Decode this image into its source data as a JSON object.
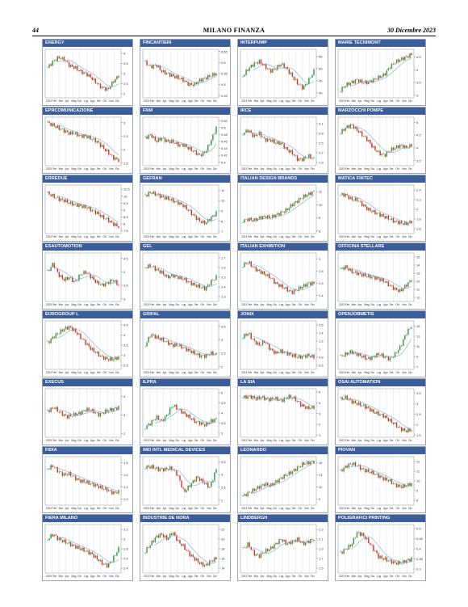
{
  "page": {
    "number": "44",
    "title": "MILANO FINANZA",
    "date": "30 Dicembre 2023"
  },
  "colors": {
    "title_bar": "#3b5d9c",
    "up_candle": "#2e9a3c",
    "down_candle": "#d8322a",
    "moving_average": "#7fa6d3",
    "grid": "#d4d8de"
  },
  "months_std": [
    "2023",
    "Feb",
    "Mar",
    "Apr",
    "Mag",
    "Giu",
    "Lug",
    "Ago",
    "Set",
    "Ott",
    "Nov",
    "Dic"
  ],
  "chart_data": [
    {
      "type": "candlestick",
      "title": "ENERGY",
      "yticks": [
        "2",
        "2.5",
        "3",
        "3.5",
        "4"
      ],
      "ylim": [
        1.8,
        4.2
      ],
      "prices": [
        3.3,
        3.6,
        3.8,
        3.7,
        3.4,
        3.3,
        3.1,
        3.0,
        2.8,
        2.5,
        2.3,
        2.2,
        2.6,
        2.9
      ]
    },
    {
      "type": "candlestick",
      "title": "FINCANTIERI",
      "yticks": [
        "0.45",
        "0.5",
        "0.55",
        "0.6",
        "0.65"
      ],
      "ylim": [
        0.44,
        0.66
      ],
      "prices": [
        0.6,
        0.58,
        0.59,
        0.56,
        0.55,
        0.54,
        0.53,
        0.52,
        0.5,
        0.5,
        0.52,
        0.53,
        0.54,
        0.55
      ]
    },
    {
      "type": "candlestick",
      "title": "INTERPUMP",
      "yticks": [
        "40",
        "45",
        "50",
        "55"
      ],
      "ylim": [
        38,
        58
      ],
      "prices": [
        47,
        50,
        52,
        53,
        51,
        49,
        50,
        52,
        50,
        47,
        44,
        42,
        45,
        49
      ]
    },
    {
      "type": "candlestick",
      "title": "MAIRE TECNIMONT",
      "yticks": [
        "3",
        "3.5",
        "4",
        "4.5"
      ],
      "ylim": [
        2.9,
        4.8
      ],
      "prices": [
        3.2,
        3.4,
        3.5,
        3.6,
        3.5,
        3.5,
        3.6,
        3.7,
        3.8,
        4.1,
        4.3,
        4.4,
        4.5,
        4.6
      ]
    },
    {
      "type": "candlestick",
      "title": "EPRCOMUNICAZIONE",
      "yticks": [
        "1.5",
        "2",
        "2.5",
        "3"
      ],
      "ylim": [
        1.4,
        3.2
      ],
      "prices": [
        3.0,
        2.9,
        2.8,
        2.7,
        2.6,
        2.6,
        2.5,
        2.5,
        2.4,
        2.3,
        2.1,
        1.9,
        1.7,
        1.6
      ]
    },
    {
      "type": "candlestick",
      "title": "FNM",
      "yticks": [
        "0.4",
        "0.42",
        "0.44",
        "0.46",
        "0.48",
        "0.5",
        "0.52"
      ],
      "ylim": [
        0.39,
        0.53
      ],
      "prices": [
        0.47,
        0.48,
        0.46,
        0.47,
        0.46,
        0.46,
        0.45,
        0.45,
        0.44,
        0.43,
        0.42,
        0.43,
        0.46,
        0.5
      ]
    },
    {
      "type": "candlestick",
      "title": "IRCE",
      "yticks": [
        "1.9",
        "2.2",
        "2.5",
        "2.8",
        "3.1"
      ],
      "ylim": [
        1.8,
        3.3
      ],
      "prices": [
        2.8,
        2.9,
        2.7,
        2.8,
        2.6,
        2.6,
        2.5,
        2.5,
        2.3,
        2.2,
        2.0,
        2.0,
        2.1,
        2.0
      ]
    },
    {
      "type": "candlestick",
      "title": "MARZOCCHI POMPE",
      "yticks": [
        "3.5",
        "4",
        "4.5",
        "5"
      ],
      "ylim": [
        3.3,
        5.2
      ],
      "prices": [
        4.6,
        4.8,
        4.9,
        4.7,
        4.5,
        4.3,
        4.0,
        3.8,
        3.7,
        3.9,
        4.0,
        4.1,
        4.0,
        4.1
      ]
    },
    {
      "type": "candlestick",
      "title": "ERREDUE",
      "yticks": [
        "7.5",
        "8",
        "8.5",
        "9",
        "9.5",
        "10",
        "10.5"
      ],
      "ylim": [
        7.3,
        10.8
      ],
      "prices": [
        10.2,
        10.0,
        9.8,
        9.7,
        9.5,
        9.4,
        9.3,
        9.2,
        9.0,
        8.8,
        8.5,
        8.3,
        8.0,
        7.8
      ]
    },
    {
      "type": "candlestick",
      "title": "GEFRAN",
      "yticks": [
        "7",
        "8",
        "9",
        "10",
        "11"
      ],
      "ylim": [
        6.8,
        11.5
      ],
      "prices": [
        10.5,
        10.8,
        10.6,
        10.4,
        10.2,
        10.0,
        9.8,
        9.5,
        9.0,
        8.5,
        8.0,
        7.8,
        8.3,
        8.8
      ]
    },
    {
      "type": "candlestick",
      "title": "ITALIAN DESIGN BRANDS",
      "yticks": [
        "8",
        "9",
        "10",
        "11"
      ],
      "ylim": [
        7.8,
        11.5
      ],
      "prices": [
        8.8,
        8.9,
        8.8,
        9.0,
        9.1,
        9.0,
        9.2,
        9.4,
        9.6,
        10.0,
        10.3,
        10.6,
        10.8,
        11.0
      ]
    },
    {
      "type": "candlestick",
      "title": "MATICA FINTEC",
      "yticks": [
        "1.6",
        "1.8",
        "2",
        "2.2",
        "2.4"
      ],
      "ylim": [
        1.5,
        2.5
      ],
      "prices": [
        2.3,
        2.3,
        2.2,
        2.2,
        2.1,
        2.0,
        1.95,
        1.9,
        1.85,
        1.8,
        1.75,
        1.72,
        1.7,
        1.75
      ]
    },
    {
      "type": "candlestick",
      "title": "ESAUTOMOTION",
      "yticks": [
        "3",
        "3.5",
        "4",
        "4.5"
      ],
      "ylim": [
        2.9,
        4.7
      ],
      "prices": [
        4.0,
        4.3,
        3.9,
        3.7,
        3.8,
        3.6,
        3.9,
        4.0,
        3.8,
        3.6,
        3.5,
        3.6,
        3.7,
        3.5
      ]
    },
    {
      "type": "candlestick",
      "title": "GEL",
      "yticks": [
        "1.3",
        "1.4",
        "1.5",
        "1.6",
        "1.7"
      ],
      "ylim": [
        1.25,
        1.75
      ],
      "prices": [
        1.6,
        1.62,
        1.58,
        1.55,
        1.5,
        1.52,
        1.5,
        1.48,
        1.45,
        1.42,
        1.4,
        1.38,
        1.45,
        1.5
      ]
    },
    {
      "type": "candlestick",
      "title": "ITALIAN EXHIBITION",
      "yticks": [
        "2.4",
        "2.6",
        "2.8",
        "3"
      ],
      "ylim": [
        2.3,
        3.1
      ],
      "prices": [
        2.9,
        2.95,
        2.85,
        2.8,
        2.75,
        2.7,
        2.6,
        2.55,
        2.5,
        2.45,
        2.5,
        2.55,
        2.6,
        2.6
      ]
    },
    {
      "type": "candlestick",
      "title": "OFFICINA STELLARE",
      "yticks": [
        "10",
        "11",
        "12",
        "13",
        "14",
        "15"
      ],
      "ylim": [
        9.5,
        15.5
      ],
      "prices": [
        13.5,
        13.8,
        13.2,
        13.0,
        12.8,
        12.6,
        12.5,
        12.3,
        12.0,
        11.5,
        11.0,
        10.8,
        11.5,
        12.2
      ]
    },
    {
      "type": "candlestick",
      "title": "EUROGROUP L",
      "yticks": [
        "2.5",
        "3",
        "3.5",
        "4",
        "4.5"
      ],
      "ylim": [
        2.3,
        4.7
      ],
      "prices": [
        3.6,
        3.9,
        4.1,
        4.3,
        4.4,
        4.2,
        3.9,
        3.6,
        3.3,
        3.1,
        2.9,
        2.8,
        2.8,
        2.9
      ]
    },
    {
      "type": "candlestick",
      "title": "GRIFAL",
      "yticks": [
        "2",
        "2.5",
        "3",
        "3.5"
      ],
      "ylim": [
        1.9,
        3.7
      ],
      "prices": [
        2.8,
        3.2,
        3.1,
        3.0,
        2.9,
        2.8,
        2.8,
        2.7,
        2.6,
        2.5,
        2.4,
        2.4,
        2.5,
        2.45
      ]
    },
    {
      "type": "candlestick",
      "title": "JONIX",
      "yticks": [
        "0.6",
        "0.8",
        "1",
        "1.2",
        "1.4",
        "1.6"
      ],
      "ylim": [
        0.5,
        1.7
      ],
      "prices": [
        1.3,
        1.4,
        1.2,
        1.1,
        1.2,
        1.0,
        0.9,
        0.95,
        0.9,
        0.85,
        0.8,
        0.82,
        0.85,
        0.8
      ]
    },
    {
      "type": "candlestick",
      "title": "OPENJOBMETIS",
      "yticks": [
        "7",
        "9",
        "11",
        "13",
        "15"
      ],
      "ylim": [
        6.5,
        16
      ],
      "prices": [
        9.0,
        9.5,
        10.0,
        9.5,
        9.0,
        8.5,
        9.0,
        9.5,
        9.0,
        8.5,
        9.5,
        11.0,
        13.5,
        15.0
      ]
    },
    {
      "type": "candlestick",
      "title": "EXECUS",
      "yticks": [
        "2",
        "3",
        "4"
      ],
      "ylim": [
        1.8,
        4.4
      ],
      "prices": [
        3.2,
        3.4,
        3.1,
        2.9,
        3.0,
        3.1,
        3.3,
        3.2,
        3.0,
        3.2,
        3.3,
        3.4
      ]
    },
    {
      "type": "candlestick",
      "title": "ILPRA",
      "yticks": [
        "3",
        "3.5",
        "4",
        "4.5",
        "5"
      ],
      "ylim": [
        2.8,
        5.2
      ],
      "prices": [
        3.3,
        3.5,
        3.8,
        3.6,
        3.9,
        4.4,
        4.2,
        4.0,
        3.8,
        3.6,
        3.5,
        3.4,
        3.6,
        3.7
      ]
    },
    {
      "type": "candlestick",
      "title": "LA SIA",
      "yticks": [
        "1",
        "2",
        "3",
        "4",
        "5"
      ],
      "ylim": [
        0.8,
        5.3
      ],
      "prices": [
        4.5,
        4.6,
        4.4,
        4.5,
        4.3,
        4.4,
        4.2,
        4.6,
        4.4,
        3.8,
        3.5,
        3.6
      ]
    },
    {
      "type": "candlestick",
      "title": "OSAI AUTOMATION",
      "yticks": [
        "1.5",
        "2",
        "2.5",
        "3",
        "3.5"
      ],
      "ylim": [
        1.4,
        3.7
      ],
      "prices": [
        3.2,
        3.3,
        3.1,
        3.0,
        2.9,
        2.8,
        2.6,
        2.5,
        2.4,
        2.2,
        2.0,
        1.8,
        1.7,
        1.75
      ]
    },
    {
      "type": "candlestick",
      "title": "FIDIA",
      "yticks": [
        "1.2",
        "1.4",
        "1.6",
        "1.8"
      ],
      "ylim": [
        1.1,
        1.9
      ],
      "prices": [
        1.7,
        1.75,
        1.65,
        1.6,
        1.62,
        1.55,
        1.5,
        1.48,
        1.45,
        1.42,
        1.38,
        1.35,
        1.3,
        1.32
      ]
    },
    {
      "type": "candlestick",
      "title": "IMD INTL MEDICAL DEVICES",
      "yticks": [
        "2",
        "2.5",
        "3",
        "3.5"
      ],
      "ylim": [
        1.8,
        3.7
      ],
      "prices": [
        3.3,
        3.3,
        3.2,
        3.2,
        3.25,
        3.0,
        2.3,
        2.6,
        2.9,
        2.7,
        2.5,
        3.2
      ]
    },
    {
      "type": "candlestick",
      "title": "LEONARDO",
      "yticks": [
        "9",
        "11",
        "13",
        "15"
      ],
      "ylim": [
        8,
        16
      ],
      "prices": [
        9.5,
        10.0,
        10.5,
        11.0,
        11.5,
        11.2,
        11.8,
        12.5,
        13.0,
        13.5,
        14.2,
        14.8,
        15.0,
        15.2
      ]
    },
    {
      "type": "candlestick",
      "title": "PIOVAN",
      "yticks": [
        "8",
        "9",
        "10",
        "11",
        "12"
      ],
      "ylim": [
        7.5,
        12.5
      ],
      "prices": [
        11.0,
        11.5,
        11.8,
        11.6,
        11.2,
        11.0,
        10.8,
        10.5,
        10.2,
        10.0,
        9.6,
        9.4,
        9.5,
        9.7
      ]
    },
    {
      "type": "candlestick",
      "title": "FIERA MILANO",
      "yticks": [
        "2.4",
        "2.6",
        "2.8",
        "3",
        "3.2"
      ],
      "ylim": [
        2.3,
        3.3
      ],
      "prices": [
        3.0,
        3.1,
        3.0,
        2.95,
        2.9,
        2.85,
        2.8,
        2.75,
        2.7,
        2.6,
        2.5,
        2.45,
        2.6,
        2.8
      ]
    },
    {
      "type": "candlestick",
      "title": "INDUSTRIE DE NORA",
      "yticks": [
        "14",
        "16",
        "18",
        "20",
        "22"
      ],
      "ylim": [
        13,
        23
      ],
      "prices": [
        17.5,
        19.0,
        20.5,
        21.0,
        20.0,
        21.5,
        19.5,
        18.5,
        17.0,
        16.0,
        15.0,
        14.5,
        15.5,
        16.0
      ]
    },
    {
      "type": "candlestick",
      "title": "LINDBERGH",
      "yticks": [
        "1.5",
        "1.7",
        "1.9",
        "2.1",
        "2.3"
      ],
      "ylim": [
        1.4,
        2.4
      ],
      "prices": [
        1.9,
        2.0,
        1.8,
        1.75,
        1.85,
        1.9,
        2.0,
        2.1,
        2.0,
        2.05,
        2.1,
        2.0,
        2.05,
        2.1
      ]
    },
    {
      "type": "candlestick",
      "title": "POLIGRAFICI PRINTING",
      "yticks": [
        "0.3",
        "0.35",
        "0.4",
        "0.45",
        "0.5"
      ],
      "ylim": [
        0.28,
        0.52
      ],
      "prices": [
        0.38,
        0.4,
        0.42,
        0.48,
        0.47,
        0.44,
        0.4,
        0.36,
        0.35,
        0.34,
        0.33,
        0.33,
        0.34,
        0.35
      ]
    }
  ]
}
